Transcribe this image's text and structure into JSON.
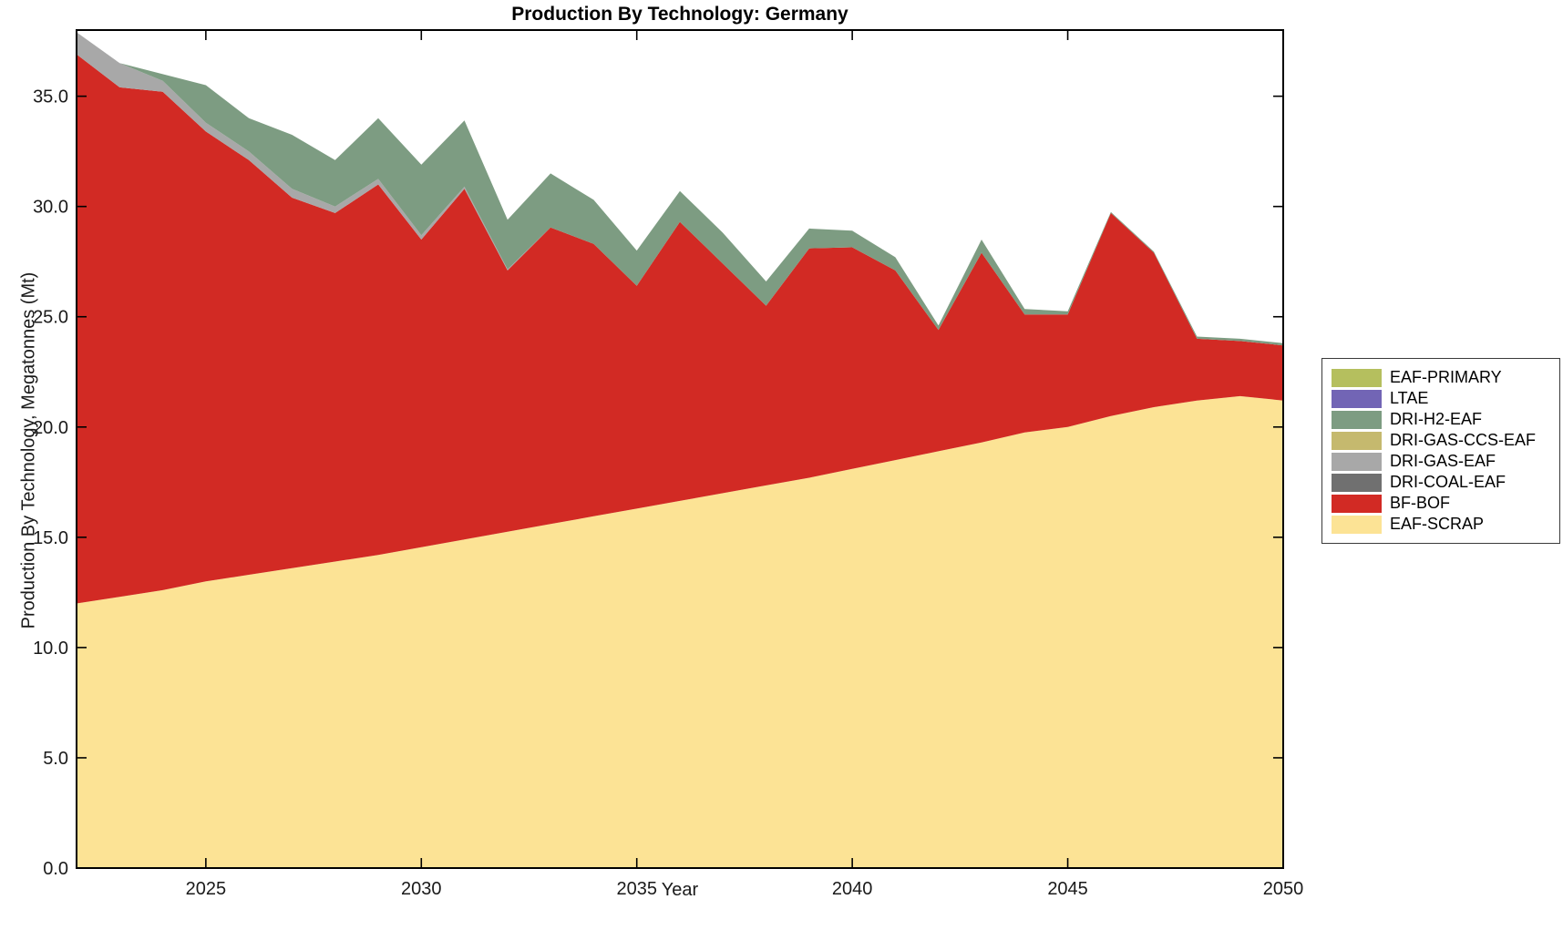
{
  "title": "Production By Technology: Germany",
  "axes": {
    "x_label": "Year",
    "y_label": "Production By Technology, Megatonnes (Mt)"
  },
  "chart_data": {
    "type": "area",
    "stacked": true,
    "title": "Production By Technology: Germany",
    "xlabel": "Year",
    "ylabel": "Production By Technology, Megatonnes (Mt)",
    "xlim": [
      2022,
      2050
    ],
    "ylim": [
      0,
      38
    ],
    "grid": false,
    "legend_position": "right-outside",
    "x_ticks": {
      "values": [
        2025,
        2030,
        2035,
        2040,
        2045,
        2050
      ],
      "labels": [
        "2025",
        "2030",
        "2035",
        "2040",
        "2045",
        "2050"
      ]
    },
    "y_ticks": {
      "values": [
        0,
        5,
        10,
        15,
        20,
        25,
        30,
        35
      ],
      "labels": [
        "0.0",
        "5.0",
        "10.0",
        "15.0",
        "20.0",
        "25.0",
        "30.0",
        "35.0"
      ]
    },
    "x": [
      2022,
      2023,
      2024,
      2025,
      2026,
      2027,
      2028,
      2029,
      2030,
      2031,
      2032,
      2033,
      2034,
      2035,
      2036,
      2037,
      2038,
      2039,
      2040,
      2041,
      2042,
      2043,
      2044,
      2045,
      2046,
      2047,
      2048,
      2049,
      2050
    ],
    "series": [
      {
        "name": "EAF-PRIMARY",
        "color": "#b5bf5e",
        "values": [
          0,
          0,
          0,
          0,
          0,
          0,
          0,
          0,
          0,
          0,
          0,
          0,
          0,
          0,
          0,
          0,
          0,
          0,
          0,
          0,
          0,
          0,
          0,
          0,
          0,
          0,
          0,
          0,
          0
        ]
      },
      {
        "name": "LTAE",
        "color": "#7265b5",
        "values": [
          0,
          0,
          0,
          0,
          0,
          0,
          0,
          0,
          0,
          0,
          0,
          0,
          0,
          0,
          0,
          0,
          0,
          0,
          0,
          0,
          0,
          0,
          0,
          0,
          0,
          0,
          0,
          0,
          0
        ]
      },
      {
        "name": "DRI-H2-EAF",
        "color": "#7d9c82",
        "values": [
          0,
          0,
          0.3,
          1.7,
          1.5,
          2.45,
          2.1,
          2.75,
          3.2,
          3.0,
          2.25,
          2.45,
          2.0,
          1.6,
          1.4,
          1.4,
          1.1,
          0.9,
          0.75,
          0.6,
          0.2,
          0.6,
          0.25,
          0.15,
          0.05,
          0.05,
          0.1,
          0.1,
          0.1
        ]
      },
      {
        "name": "DRI-GAS-CCS-EAF",
        "color": "#c5b96e",
        "values": [
          0,
          0,
          0,
          0,
          0,
          0,
          0,
          0,
          0,
          0,
          0,
          0,
          0,
          0,
          0,
          0,
          0,
          0,
          0,
          0,
          0,
          0,
          0,
          0,
          0,
          0,
          0,
          0,
          0
        ]
      },
      {
        "name": "DRI-GAS-EAF",
        "color": "#a8a8a8",
        "values": [
          1.0,
          1.1,
          0.5,
          0.4,
          0.4,
          0.4,
          0.3,
          0.25,
          0.2,
          0.1,
          0.05,
          0,
          0,
          0,
          0,
          0,
          0,
          0,
          0,
          0,
          0,
          0,
          0,
          0,
          0,
          0,
          0,
          0,
          0
        ]
      },
      {
        "name": "DRI-COAL-EAF",
        "color": "#707070",
        "values": [
          0,
          0,
          0,
          0,
          0,
          0,
          0,
          0,
          0,
          0,
          0,
          0,
          0,
          0,
          0,
          0,
          0,
          0,
          0,
          0,
          0,
          0,
          0,
          0,
          0,
          0,
          0,
          0,
          0
        ]
      },
      {
        "name": "BF-BOF",
        "color": "#d22a24",
        "values": [
          24.9,
          23.1,
          22.6,
          20.4,
          18.8,
          16.8,
          15.8,
          16.8,
          13.95,
          15.9,
          11.85,
          13.45,
          12.35,
          10.1,
          12.65,
          10.4,
          8.15,
          10.4,
          10.05,
          8.6,
          5.5,
          8.6,
          5.35,
          5.1,
          9.2,
          7.0,
          2.8,
          2.5,
          2.5
        ]
      },
      {
        "name": "EAF-SCRAP",
        "color": "#fce395",
        "values": [
          12.0,
          12.3,
          12.6,
          13.0,
          13.3,
          13.6,
          13.9,
          14.2,
          14.55,
          14.9,
          15.25,
          15.6,
          15.95,
          16.3,
          16.65,
          17.0,
          17.35,
          17.7,
          18.1,
          18.5,
          18.9,
          19.3,
          19.75,
          20.0,
          20.5,
          20.9,
          21.2,
          21.4,
          21.2
        ]
      }
    ]
  }
}
